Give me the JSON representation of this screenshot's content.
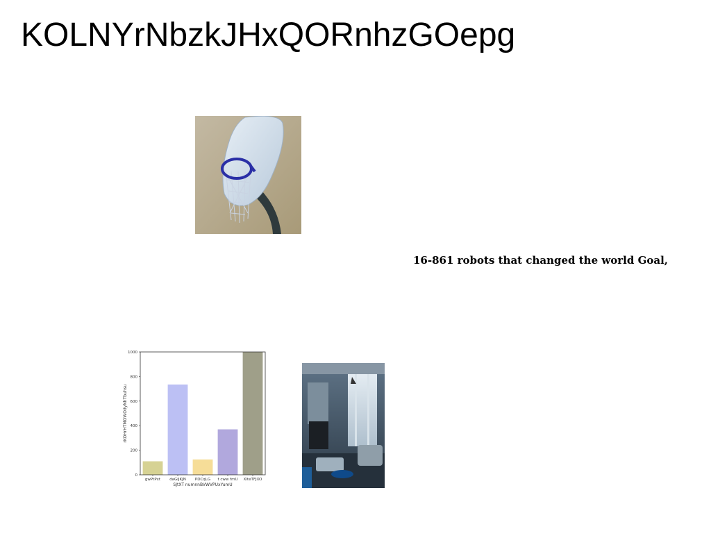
{
  "page": {
    "title": "KOLNYrNbzkJHxQORnhzGOepg",
    "caption": "16-861 robots that changed the world Goal,"
  },
  "images": {
    "hoop": "basketball-hoop-photo",
    "room": "living-room-photo"
  },
  "chart_data": {
    "type": "bar",
    "categories": [
      "gwPtPxt",
      "daGiJKJN",
      "PDCqLG",
      "t cww fmU",
      "XlteTFJXO"
    ],
    "values": [
      110,
      735,
      125,
      370,
      1000
    ],
    "colors": [
      "#d6d294",
      "#bcc0f4",
      "#f6dd98",
      "#b1a8dd",
      "#9f9f89"
    ],
    "xlabel": "SJtXT numnnBVWVPUxYumU",
    "ylabel": "rKOHrHTMOWOdyNhTbuhsu",
    "yticks": [
      0,
      200,
      400,
      600,
      800,
      1000
    ],
    "ylim": [
      0,
      1000
    ],
    "grid": false
  }
}
